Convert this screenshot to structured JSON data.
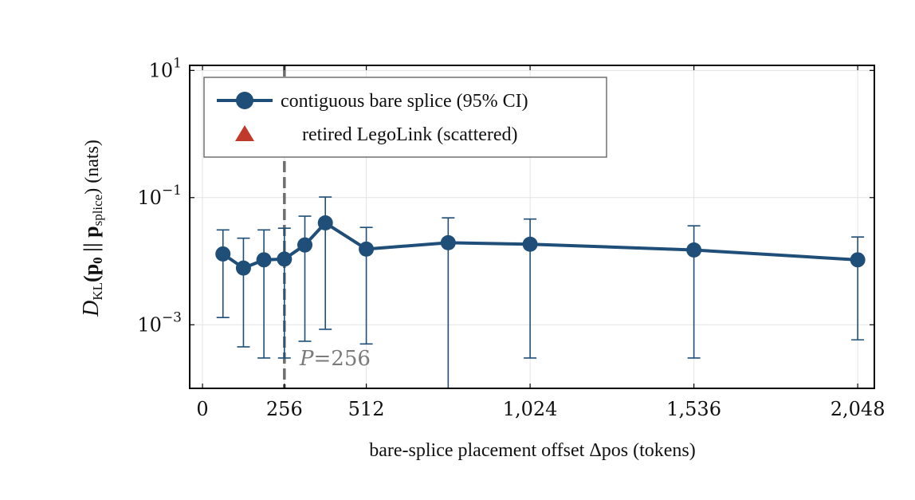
{
  "chart_data": {
    "type": "line",
    "xlabel": "bare-splice placement offset Δpos (tokens)",
    "ylabel": "D_KL(p0 || p_splice) (nats)",
    "ylabel_parts": {
      "main": "D",
      "sub1": "KL",
      "mid": "(p",
      "sub2": "0",
      "mid2": " || p",
      "sub3": "splice",
      "tail": ") (nats)"
    },
    "yscale": "log",
    "xlim": [
      -40,
      2100
    ],
    "ylim": [
      0.0001,
      12
    ],
    "x_ticks": [
      0,
      256,
      512,
      1024,
      1536,
      2048
    ],
    "x_tick_labels": [
      "0",
      "256",
      "512",
      "1,024",
      "1,536",
      "2,048"
    ],
    "y_ticks": [
      0.001,
      0.1,
      10
    ],
    "y_tick_labels": [
      {
        "base": "10",
        "exp": "−3"
      },
      {
        "base": "10",
        "exp": "−1"
      },
      {
        "base": "10",
        "exp": "1"
      }
    ],
    "grid": true,
    "legend_position": "top-left",
    "series": [
      {
        "name": "contiguous bare splice (95% CI)",
        "color": "#1f4e79",
        "marker": "circle",
        "x": [
          64,
          128,
          192,
          256,
          320,
          384,
          512,
          768,
          1024,
          1536,
          2048
        ],
        "y": [
          0.013,
          0.0078,
          0.0105,
          0.0108,
          0.018,
          0.04,
          0.0155,
          0.0195,
          0.0185,
          0.015,
          0.0105
        ],
        "ci_low": [
          0.0013,
          0.00045,
          0.0003,
          0.0003,
          0.00055,
          0.00085,
          0.0005,
          0.0001,
          0.0003,
          0.0003,
          0.00058
        ],
        "ci_high": [
          0.031,
          0.023,
          0.031,
          0.033,
          0.051,
          0.102,
          0.034,
          0.048,
          0.046,
          0.036,
          0.024
        ]
      },
      {
        "name": "retired LegoLink (scattered)",
        "color": "#c0392b",
        "marker": "triangle",
        "x": [],
        "y": []
      }
    ],
    "annotations": [
      {
        "text_main": "P",
        "text_rest": "=256",
        "x": 256,
        "style": "dashed vertical line",
        "color": "#7a7a7a"
      }
    ]
  }
}
